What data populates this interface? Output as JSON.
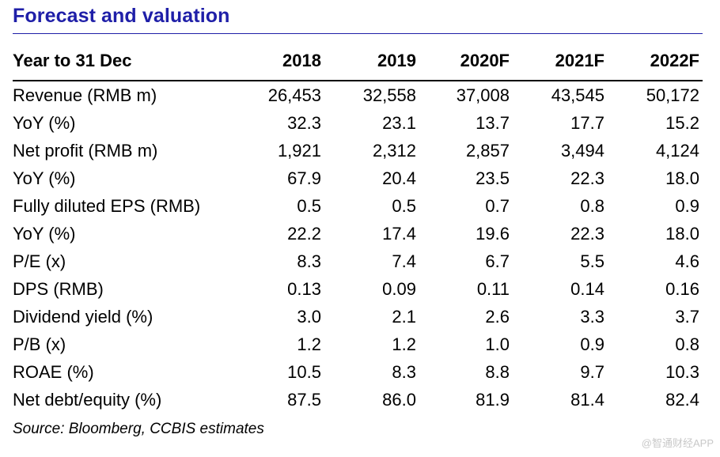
{
  "title": "Forecast and valuation",
  "header": {
    "label": "Year to 31 Dec",
    "years": [
      "2018",
      "2019",
      "2020F",
      "2021F",
      "2022F"
    ]
  },
  "rows": [
    {
      "label": "Revenue (RMB m)",
      "values": [
        "26,453",
        "32,558",
        "37,008",
        "43,545",
        "50,172"
      ]
    },
    {
      "label": "YoY (%)",
      "values": [
        "32.3",
        "23.1",
        "13.7",
        "17.7",
        "15.2"
      ]
    },
    {
      "label": "Net profit (RMB m)",
      "values": [
        "1,921",
        "2,312",
        "2,857",
        "3,494",
        "4,124"
      ]
    },
    {
      "label": "YoY (%)",
      "values": [
        "67.9",
        "20.4",
        "23.5",
        "22.3",
        "18.0"
      ]
    },
    {
      "label": "Fully diluted EPS (RMB)",
      "values": [
        "0.5",
        "0.5",
        "0.7",
        "0.8",
        "0.9"
      ]
    },
    {
      "label": "YoY (%)",
      "values": [
        "22.2",
        "17.4",
        "19.6",
        "22.3",
        "18.0"
      ]
    },
    {
      "label": "P/E (x)",
      "values": [
        "8.3",
        "7.4",
        "6.7",
        "5.5",
        "4.6"
      ]
    },
    {
      "label": "DPS (RMB)",
      "values": [
        "0.13",
        "0.09",
        "0.11",
        "0.14",
        "0.16"
      ]
    },
    {
      "label": "Dividend yield (%)",
      "values": [
        "3.0",
        "2.1",
        "2.6",
        "3.3",
        "3.7"
      ]
    },
    {
      "label": "P/B (x)",
      "values": [
        "1.2",
        "1.2",
        "1.0",
        "0.9",
        "0.8"
      ]
    },
    {
      "label": "ROAE (%)",
      "values": [
        "10.5",
        "8.3",
        "8.8",
        "9.7",
        "10.3"
      ]
    },
    {
      "label": "Net debt/equity (%)",
      "values": [
        "87.5",
        "86.0",
        "81.9",
        "81.4",
        "82.4"
      ]
    }
  ],
  "source": "Source: Bloomberg, CCBIS estimates",
  "watermark": "@智通财经APP",
  "colors": {
    "title": "#1f1fa8",
    "watermark": "#c8c8c8"
  }
}
